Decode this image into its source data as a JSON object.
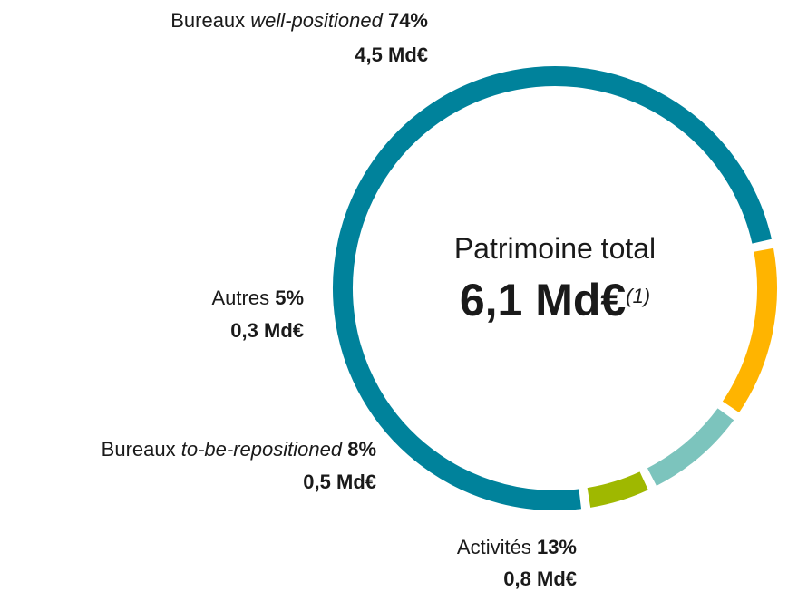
{
  "chart_data": {
    "type": "donut",
    "categories": [
      [
        "Bureaux",
        "well-positioned"
      ],
      [
        "Activités"
      ],
      [
        "Bureaux",
        "to-be-repositioned"
      ],
      [
        "Autres"
      ]
    ],
    "values": [
      74,
      13,
      8,
      5
    ],
    "value_labels": [
      "74%",
      "13%",
      "8%",
      "5%"
    ],
    "amounts": [
      4.5,
      0.8,
      0.5,
      0.3
    ],
    "amount_labels": [
      "4,5 Md€",
      "0,8 Md€",
      "0,5 Md€",
      "0,3 Md€"
    ],
    "colors": [
      "#00829b",
      "#ffb400",
      "#7cc4bd",
      "#9fb800"
    ],
    "center_title": "Patrimoine total",
    "center_value": "6,1 Md€",
    "center_note": "(1)"
  }
}
